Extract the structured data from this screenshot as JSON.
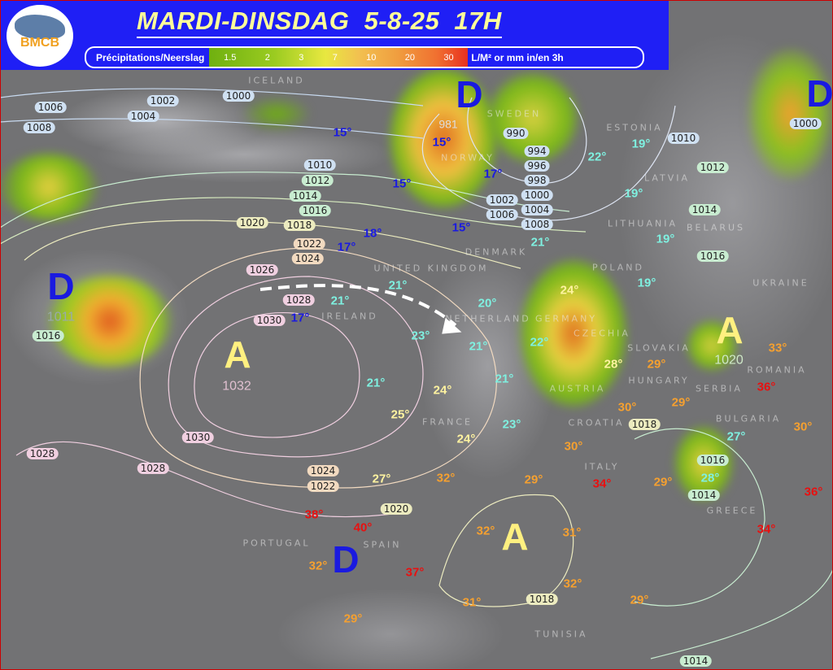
{
  "header": {
    "logo_text": "BMCB",
    "title": "MARDI-DINSDAG  5-8-25  17H",
    "legend": {
      "label": "Précipitations/Neerslag",
      "values": [
        "1.5",
        "2",
        "3",
        "7",
        "10",
        "20",
        "30"
      ],
      "unit": "L/M² or mm in/en 3h"
    }
  },
  "colors": {
    "header_bg": "#1f1ff5",
    "title": "#ffff99",
    "low": "#1a1ae0",
    "high": "#fff080",
    "cool_temp": "#1a1ae0",
    "mild_temp": "#7ff0e0",
    "warm_temp": "#fff3a0",
    "hot_temp": "#f5a030",
    "very_hot_temp": "#e81010"
  },
  "pressure_centers": {
    "lows": [
      "D",
      "D",
      "D",
      "D"
    ],
    "highs": [
      "A",
      "A",
      "A"
    ],
    "low_values": [
      "1011",
      "981"
    ],
    "high_values": [
      "1032",
      "1020"
    ]
  },
  "isobars": [
    "1006",
    "1008",
    "1002",
    "1004",
    "1000",
    "990",
    "994",
    "996",
    "998",
    "1000",
    "1002",
    "1004",
    "1006",
    "1008",
    "1010",
    "1012",
    "1014",
    "1016",
    "1018",
    "1020",
    "1022",
    "1024",
    "1026",
    "1028",
    "1030",
    "1016",
    "1030",
    "1028",
    "1028",
    "1024",
    "1022",
    "1020",
    "1018",
    "1018",
    "1016",
    "1014",
    "1014",
    "1010",
    "1012",
    "1014",
    "1016",
    "1000"
  ],
  "temps_cool": [
    "15°",
    "15°",
    "15°",
    "17°",
    "15°",
    "17°",
    "18°",
    "17°"
  ],
  "temps_mild": [
    "22°",
    "19°",
    "19°",
    "21°",
    "19°",
    "19°",
    "21°",
    "21°",
    "20°",
    "23°",
    "21°",
    "22°",
    "21°",
    "21°",
    "23°",
    "27°",
    "28°"
  ],
  "temps_warm": [
    "24°",
    "28°",
    "24°",
    "25°",
    "24°",
    "27°"
  ],
  "temps_hot": [
    "29°",
    "30°",
    "29°",
    "30°",
    "32°",
    "29°",
    "29°",
    "32°",
    "31°",
    "32°",
    "32°",
    "31°",
    "29°",
    "29°",
    "33°",
    "30°"
  ],
  "temps_very_hot": [
    "36°",
    "34°",
    "38°",
    "40°",
    "37°",
    "34°",
    "36°"
  ],
  "countries": [
    "ICELAND",
    "SWEDEN",
    "NORWAY",
    "ESTONIA",
    "LATVIA",
    "LITHUANIA",
    "BELARUS",
    "DENMARK",
    "UNITED KINGDOM",
    "IRELAND",
    "NETHERLAND",
    "GERMANY",
    "POLAND",
    "UKRAINE",
    "CZECHIA",
    "SLOVAKIA",
    "HUNGARY",
    "ROMANIA",
    "AUSTRIA",
    "CROATIA",
    "SERBIA",
    "BULGARIA",
    "FRANCE",
    "ITALY",
    "GREECE",
    "PORTUGAL",
    "SPAIN",
    "TUNISIA"
  ]
}
